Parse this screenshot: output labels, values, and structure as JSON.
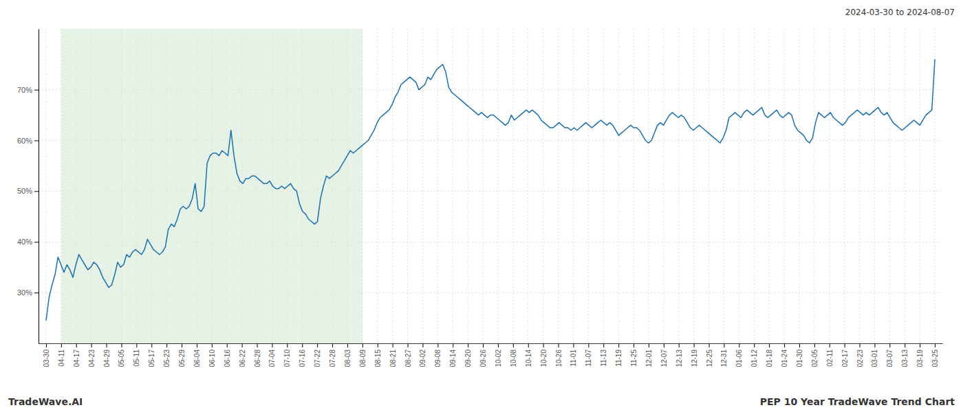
{
  "chart_data": {
    "type": "line",
    "title": "PEP 10 Year TradeWave Trend Chart",
    "subtitle": "2024-03-30 to 2024-08-07",
    "annotations": [
      "TradeWave.AI"
    ],
    "color": "#1a6faf",
    "grid": true,
    "highlight": {
      "range": [
        5.050847,
        106.067797
      ],
      "color": "#d6ead6"
    },
    "ylim": [
      20,
      82
    ],
    "yticks": [
      {
        "value": 30,
        "label": "30%"
      },
      {
        "value": 40,
        "label": "40%"
      },
      {
        "value": 50,
        "label": "50%"
      },
      {
        "value": 60,
        "label": "60%"
      },
      {
        "value": 70,
        "label": "70%"
      }
    ],
    "xlim": [
      -2.525424,
      300.525424
    ],
    "xticks": [
      {
        "value": 0,
        "label": "03-30"
      },
      {
        "value": 5.050847,
        "label": "04-11"
      },
      {
        "value": 10.101695,
        "label": "04-17"
      },
      {
        "value": 15.152542,
        "label": "04-23"
      },
      {
        "value": 20.20339,
        "label": "04-29"
      },
      {
        "value": 25.254237,
        "label": "05-05"
      },
      {
        "value": 30.305085,
        "label": "05-11"
      },
      {
        "value": 35.355932,
        "label": "05-17"
      },
      {
        "value": 40.40678,
        "label": "05-23"
      },
      {
        "value": 45.457627,
        "label": "05-29"
      },
      {
        "value": 50.508475,
        "label": "06-04"
      },
      {
        "value": 55.559322,
        "label": "06-10"
      },
      {
        "value": 60.610169,
        "label": "06-16"
      },
      {
        "value": 65.661017,
        "label": "06-22"
      },
      {
        "value": 70.711864,
        "label": "06-28"
      },
      {
        "value": 75.762712,
        "label": "07-04"
      },
      {
        "value": 80.813559,
        "label": "07-10"
      },
      {
        "value": 85.864407,
        "label": "07-16"
      },
      {
        "value": 90.915254,
        "label": "07-22"
      },
      {
        "value": 95.966102,
        "label": "07-28"
      },
      {
        "value": 101.016949,
        "label": "08-03"
      },
      {
        "value": 106.067797,
        "label": "08-09"
      },
      {
        "value": 111.118644,
        "label": "08-15"
      },
      {
        "value": 116.169492,
        "label": "08-21"
      },
      {
        "value": 121.220339,
        "label": "08-27"
      },
      {
        "value": 126.271186,
        "label": "09-02"
      },
      {
        "value": 131.322034,
        "label": "09-08"
      },
      {
        "value": 136.372881,
        "label": "09-14"
      },
      {
        "value": 141.423729,
        "label": "09-20"
      },
      {
        "value": 146.474576,
        "label": "09-26"
      },
      {
        "value": 151.525424,
        "label": "10-02"
      },
      {
        "value": 156.576271,
        "label": "10-08"
      },
      {
        "value": 161.627119,
        "label": "10-14"
      },
      {
        "value": 166.677966,
        "label": "10-20"
      },
      {
        "value": 171.728814,
        "label": "10-26"
      },
      {
        "value": 176.779661,
        "label": "11-01"
      },
      {
        "value": 181.830508,
        "label": "11-07"
      },
      {
        "value": 186.881356,
        "label": "11-13"
      },
      {
        "value": 191.932203,
        "label": "11-19"
      },
      {
        "value": 196.983051,
        "label": "11-25"
      },
      {
        "value": 202.033898,
        "label": "12-01"
      },
      {
        "value": 207.084746,
        "label": "12-07"
      },
      {
        "value": 212.135593,
        "label": "12-13"
      },
      {
        "value": 217.186441,
        "label": "12-19"
      },
      {
        "value": 222.237288,
        "label": "12-25"
      },
      {
        "value": 227.288136,
        "label": "12-31"
      },
      {
        "value": 232.338983,
        "label": "01-06"
      },
      {
        "value": 237.389831,
        "label": "01-12"
      },
      {
        "value": 242.440678,
        "label": "01-18"
      },
      {
        "value": 247.491525,
        "label": "01-24"
      },
      {
        "value": 252.542373,
        "label": "01-30"
      },
      {
        "value": 257.59322,
        "label": "02-05"
      },
      {
        "value": 262.644068,
        "label": "02-11"
      },
      {
        "value": 267.694915,
        "label": "02-17"
      },
      {
        "value": 272.745763,
        "label": "02-23"
      },
      {
        "value": 277.79661,
        "label": "03-01"
      },
      {
        "value": 282.847458,
        "label": "03-07"
      },
      {
        "value": 287.898305,
        "label": "03-13"
      },
      {
        "value": 292.949153,
        "label": "03-19"
      },
      {
        "value": 298,
        "label": "03-25"
      }
    ],
    "x": [
      0,
      1,
      2,
      3,
      4,
      5,
      6,
      7,
      8,
      9,
      10,
      11,
      12,
      13,
      14,
      15,
      16,
      17,
      18,
      19,
      20,
      21,
      22,
      23,
      24,
      25,
      26,
      27,
      28,
      29,
      30,
      31,
      32,
      33,
      34,
      35,
      36,
      37,
      38,
      39,
      40,
      41,
      42,
      43,
      44,
      45,
      46,
      47,
      48,
      49,
      50,
      51,
      52,
      53,
      54,
      55,
      56,
      57,
      58,
      59,
      60,
      61,
      62,
      63,
      64,
      65,
      66,
      67,
      68,
      69,
      70,
      71,
      72,
      73,
      74,
      75,
      76,
      77,
      78,
      79,
      80,
      81,
      82,
      83,
      84,
      85,
      86,
      87,
      88,
      89,
      90,
      91,
      92,
      93,
      94,
      95,
      96,
      97,
      98,
      99,
      100,
      101,
      102,
      103,
      104,
      105,
      106,
      107,
      108,
      109,
      110,
      111,
      112,
      113,
      114,
      115,
      116,
      117,
      118,
      119,
      120,
      121,
      122,
      123,
      124,
      125,
      126,
      127,
      128,
      129,
      130,
      131,
      132,
      133,
      134,
      135,
      136,
      137,
      138,
      139,
      140,
      141,
      142,
      143,
      144,
      145,
      146,
      147,
      148,
      149,
      150,
      151,
      152,
      153,
      154,
      155,
      156,
      157,
      158,
      159,
      160,
      161,
      162,
      163,
      164,
      165,
      166,
      167,
      168,
      169,
      170,
      171,
      172,
      173,
      174,
      175,
      176,
      177,
      178,
      179,
      180,
      181,
      182,
      183,
      184,
      185,
      186,
      187,
      188,
      189,
      190,
      191,
      192,
      193,
      194,
      195,
      196,
      197,
      198,
      199,
      200,
      201,
      202,
      203,
      204,
      205,
      206,
      207,
      208,
      209,
      210,
      211,
      212,
      213,
      214,
      215,
      216,
      217,
      218,
      219,
      220,
      221,
      222,
      223,
      224,
      225,
      226,
      227,
      228,
      229,
      230,
      231,
      232,
      233,
      234,
      235,
      236,
      237,
      238,
      239,
      240,
      241,
      242,
      243,
      244,
      245,
      246,
      247,
      248,
      249,
      250,
      251,
      252,
      253,
      254,
      255,
      256,
      257,
      258,
      259,
      260,
      261,
      262,
      263,
      264,
      265,
      266,
      267,
      268,
      269,
      270,
      271,
      272,
      273,
      274,
      275,
      276,
      277,
      278,
      279,
      280,
      281,
      282,
      283,
      284,
      285,
      286,
      287,
      288,
      289,
      290,
      291,
      292,
      293,
      294,
      295,
      296,
      297,
      298
    ],
    "values": [
      24.5,
      29.0,
      31.5,
      33.5,
      37.0,
      35.5,
      34.0,
      35.5,
      34.5,
      33.0,
      35.5,
      37.5,
      36.5,
      35.5,
      34.5,
      35.0,
      36.0,
      35.5,
      34.5,
      33.0,
      32.0,
      31.0,
      31.5,
      33.5,
      36.0,
      35.0,
      35.5,
      37.5,
      37.0,
      38.0,
      38.5,
      38.0,
      37.5,
      38.5,
      40.5,
      39.5,
      38.5,
      38.0,
      37.5,
      38.0,
      39.0,
      42.5,
      43.5,
      43.0,
      44.5,
      46.5,
      47.0,
      46.5,
      47.0,
      48.5,
      51.5,
      46.5,
      46.0,
      47.0,
      55.5,
      57.0,
      57.5,
      57.5,
      57.0,
      58.0,
      57.5,
      57.0,
      62.0,
      57.0,
      53.5,
      52.0,
      51.5,
      52.5,
      52.5,
      53.0,
      53.0,
      52.5,
      52.0,
      51.5,
      51.5,
      52.0,
      51.0,
      50.5,
      50.5,
      51.0,
      50.5,
      51.0,
      51.5,
      50.5,
      50.0,
      47.5,
      46.0,
      45.5,
      44.5,
      44.0,
      43.5,
      44.0,
      48.5,
      51.0,
      53.0,
      52.5,
      53.0,
      53.5,
      54.0,
      55.0,
      56.0,
      57.0,
      58.0,
      57.5,
      58.0,
      58.5,
      59.0,
      59.5,
      60.0,
      61.0,
      62.0,
      63.5,
      64.5,
      65.0,
      65.5,
      66.0,
      67.0,
      68.5,
      69.5,
      71.0,
      71.5,
      72.0,
      72.5,
      72.0,
      71.5,
      70.0,
      70.5,
      71.0,
      72.5,
      72.0,
      73.0,
      74.0,
      74.5,
      75.0,
      73.5,
      70.5,
      69.5,
      69.0,
      68.5,
      68.0,
      67.5,
      67.0,
      66.5,
      66.0,
      65.5,
      65.0,
      65.5,
      65.0,
      64.5,
      65.0,
      65.0,
      64.5,
      64.0,
      63.5,
      63.0,
      63.5,
      65.0,
      64.0,
      64.5,
      65.0,
      65.5,
      66.0,
      65.5,
      66.0,
      65.5,
      65.0,
      64.0,
      63.5,
      63.0,
      62.5,
      62.5,
      63.0,
      63.5,
      63.0,
      62.5,
      62.5,
      62.0,
      62.5,
      62.0,
      62.5,
      63.0,
      63.5,
      63.0,
      62.5,
      63.0,
      63.5,
      64.0,
      63.5,
      63.0,
      63.5,
      63.0,
      62.0,
      61.0,
      61.5,
      62.0,
      62.5,
      63.0,
      62.5,
      62.5,
      62.0,
      61.0,
      60.0,
      59.5,
      60.0,
      61.5,
      63.0,
      63.5,
      63.0,
      64.0,
      65.0,
      65.5,
      65.0,
      64.5,
      65.0,
      64.5,
      63.5,
      62.5,
      62.0,
      62.5,
      63.0,
      62.5,
      62.0,
      61.5,
      61.0,
      60.5,
      60.0,
      59.5,
      60.5,
      62.0,
      64.5,
      65.0,
      65.5,
      65.0,
      64.5,
      65.5,
      66.0,
      65.5,
      65.0,
      65.5,
      66.0,
      66.5,
      65.0,
      64.5,
      65.0,
      65.5,
      66.0,
      65.0,
      64.5,
      65.0,
      65.5,
      65.0,
      63.0,
      62.0,
      61.5,
      61.0,
      60.0,
      59.5,
      60.5,
      63.5,
      65.5,
      65.0,
      64.5,
      65.0,
      65.5,
      64.5,
      64.0,
      63.5,
      63.0,
      63.5,
      64.5,
      65.0,
      65.5,
      66.0,
      65.5,
      65.0,
      65.5,
      65.0,
      65.5,
      66.0,
      66.5,
      65.5,
      65.0,
      65.5,
      64.5,
      63.5,
      63.0,
      62.5,
      62.0,
      62.5,
      63.0,
      63.5,
      64.0,
      63.5,
      63.0,
      64.0,
      65.0,
      65.5,
      66.0,
      76.0
    ]
  }
}
